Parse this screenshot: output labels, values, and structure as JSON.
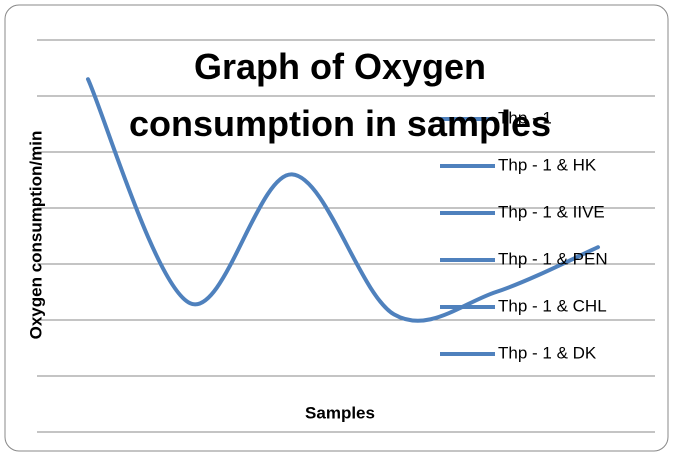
{
  "chart_data": {
    "type": "line",
    "title": "Graph of Oxygen consumption in samples",
    "y_label": "Oxygen consumption/min",
    "x_label": "Samples",
    "categories": [
      "Thp - 1",
      "Thp - 1 & HK",
      "Thp - 1 & IIVE",
      "Thp - 1 & PEN",
      "Thp - 1 & CHL",
      "Thp - 1 & DK"
    ],
    "values": [
      6.3,
      2.3,
      4.6,
      2.1,
      2.5,
      3.3
    ],
    "color": "#4f81bd",
    "ylim": [
      0,
      7
    ],
    "yticks": [
      0,
      1,
      2,
      3,
      4,
      5,
      6,
      7
    ],
    "grid": true,
    "legend": "right"
  }
}
